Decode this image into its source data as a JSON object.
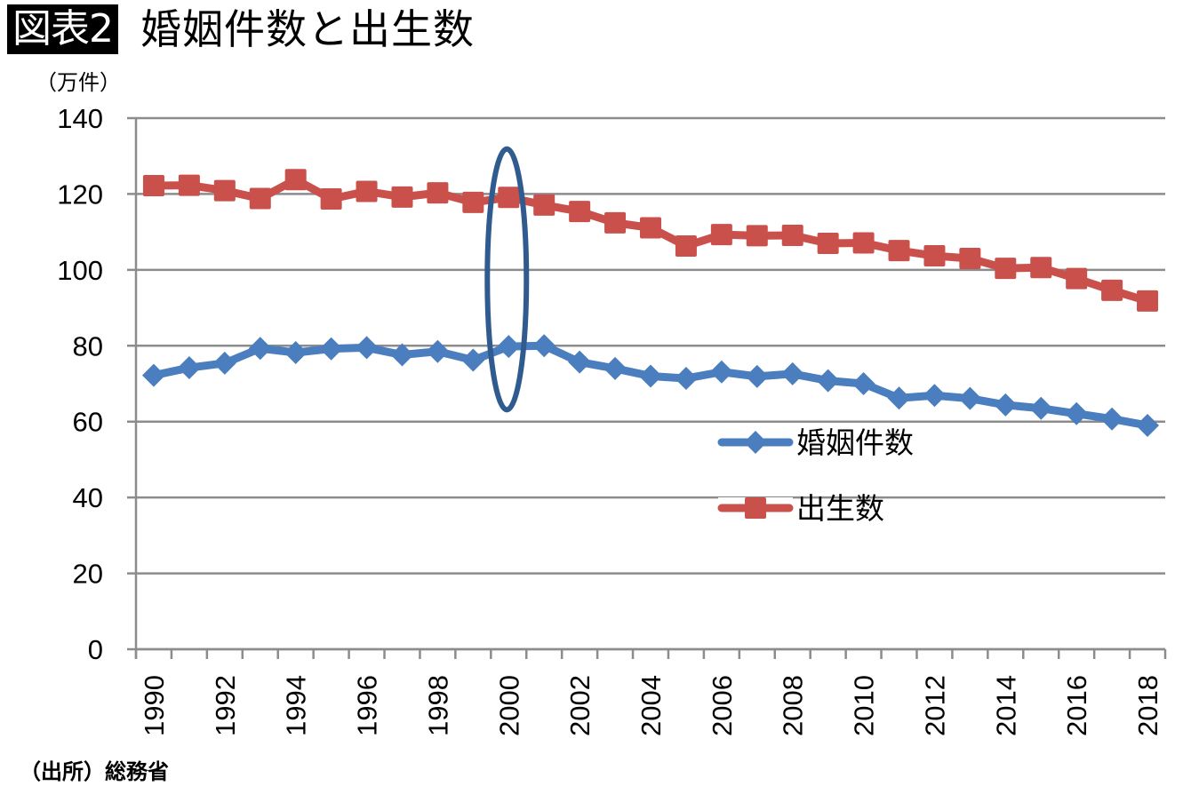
{
  "header": {
    "badge": "図表2",
    "title": "婚姻件数と出生数"
  },
  "unit_label": "（万件）",
  "source": "（出所）総務省",
  "colors": {
    "marriages": "#4a7ebf",
    "births": "#c9504b",
    "grid": "#8c8c8c",
    "highlight": "#2f5b8f"
  },
  "chart_data": {
    "type": "line",
    "title": "婚姻件数と出生数",
    "xlabel": "",
    "ylabel": "（万件）",
    "ylim": [
      0,
      140
    ],
    "yticks": [
      "0",
      "20",
      "40",
      "60",
      "80",
      "100",
      "120",
      "140"
    ],
    "grid": true,
    "legend_position": "center-right",
    "x": [
      "1990",
      "1991",
      "1992",
      "1993",
      "1994",
      "1995",
      "1996",
      "1997",
      "1998",
      "1999",
      "2000",
      "2001",
      "2002",
      "2003",
      "2004",
      "2005",
      "2006",
      "2007",
      "2008",
      "2009",
      "2010",
      "2011",
      "2012",
      "2013",
      "2014",
      "2015",
      "2016",
      "2017",
      "2018"
    ],
    "xtick_labels": [
      "1990",
      "1992",
      "1994",
      "1996",
      "1998",
      "2000",
      "2002",
      "2004",
      "2006",
      "2008",
      "2010",
      "2012",
      "2014",
      "2016",
      "2018"
    ],
    "series": [
      {
        "name": "婚姻件数",
        "marker": "diamond",
        "values": [
          72.2,
          74.2,
          75.4,
          79.3,
          78.2,
          79.2,
          79.5,
          77.6,
          78.5,
          76.2,
          79.8,
          80.0,
          75.7,
          74.0,
          72.0,
          71.4,
          73.1,
          71.9,
          72.6,
          70.8,
          70.0,
          66.2,
          66.9,
          66.1,
          64.4,
          63.5,
          62.1,
          60.7,
          59.0
        ]
      },
      {
        "name": "出生数",
        "marker": "square",
        "values": [
          122.2,
          122.3,
          120.9,
          118.8,
          123.8,
          118.7,
          120.7,
          119.2,
          120.3,
          117.8,
          119.1,
          117.1,
          115.4,
          112.4,
          111.1,
          106.3,
          109.3,
          109.0,
          109.1,
          107.0,
          107.1,
          105.1,
          103.7,
          103.0,
          100.4,
          100.6,
          97.7,
          94.6,
          91.8
        ]
      }
    ],
    "annotations": [
      {
        "type": "ellipse",
        "x": "2000",
        "y_range": [
          65,
          130
        ]
      }
    ]
  }
}
